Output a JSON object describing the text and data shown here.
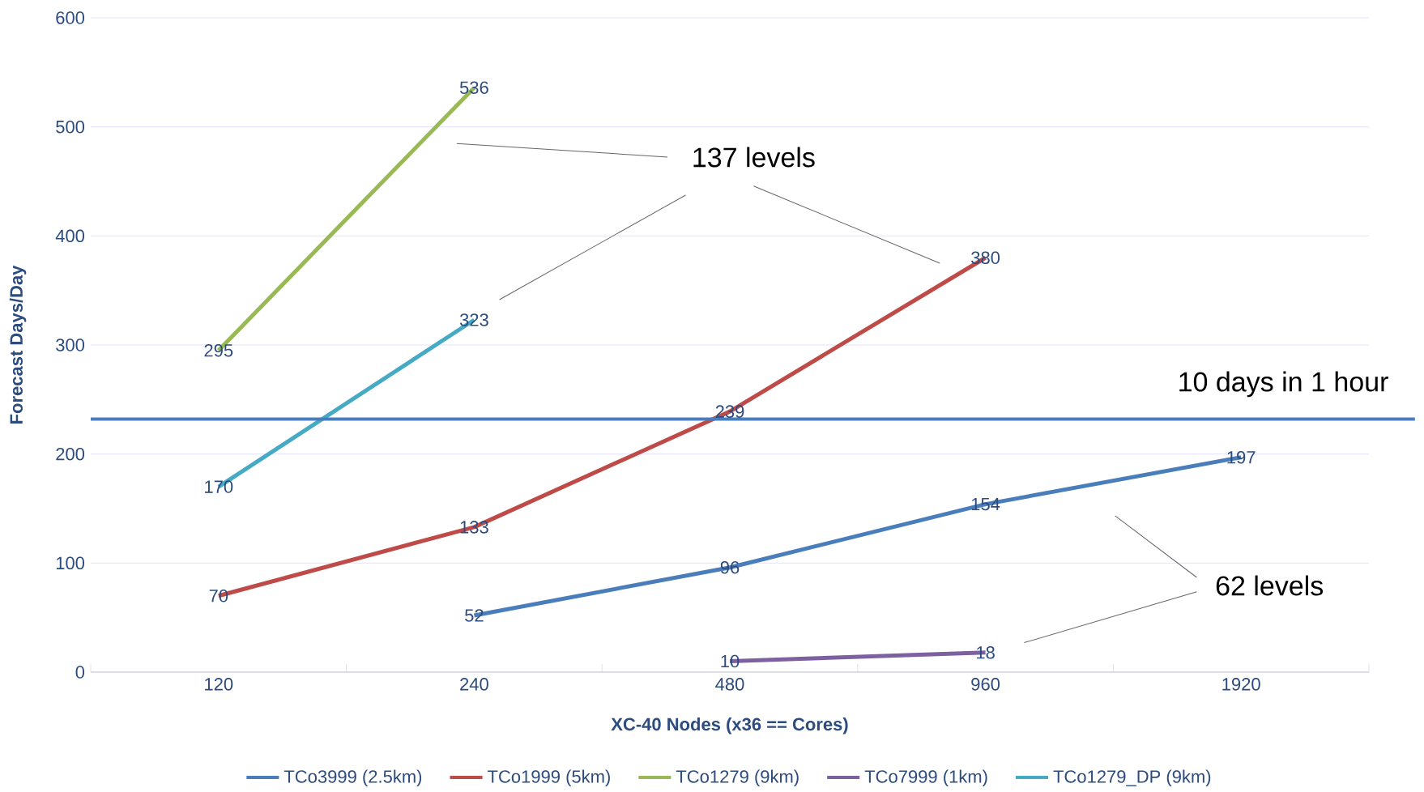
{
  "chart_data": {
    "type": "line",
    "xlabel": "XC-40 Nodes (x36 == Cores)",
    "ylabel": "Forecast Days/Day",
    "categories": [
      "120",
      "240",
      "480",
      "960",
      "1920"
    ],
    "series": [
      {
        "name": "TCo3999 (2.5km)",
        "color": "#4a7ebb",
        "values": [
          null,
          52,
          96,
          154,
          197
        ]
      },
      {
        "name": "TCo1999 (5km)",
        "color": "#be4b48",
        "values": [
          70,
          133,
          239,
          380,
          null
        ]
      },
      {
        "name": "TCo1279 (9km)",
        "color": "#98b954",
        "values": [
          295,
          536,
          null,
          null,
          null
        ]
      },
      {
        "name": "TCo7999 (1km)",
        "color": "#7d60a0",
        "values": [
          null,
          null,
          10,
          18,
          null
        ]
      },
      {
        "name": "TCo1279_DP (9km)",
        "color": "#46aac5",
        "values": [
          170,
          323,
          null,
          null,
          null
        ]
      }
    ],
    "ylim": [
      0,
      600
    ],
    "yticks": [
      0,
      100,
      200,
      300,
      400,
      500,
      600
    ],
    "grid": "y",
    "legend": "bottom",
    "data_labels": true,
    "ref_lines": [
      {
        "axis": "y",
        "value": 232,
        "label": "10 days in 1 hour",
        "color": "#4a7ebb"
      }
    ],
    "annotations": [
      "137 levels",
      "62 levels"
    ]
  }
}
